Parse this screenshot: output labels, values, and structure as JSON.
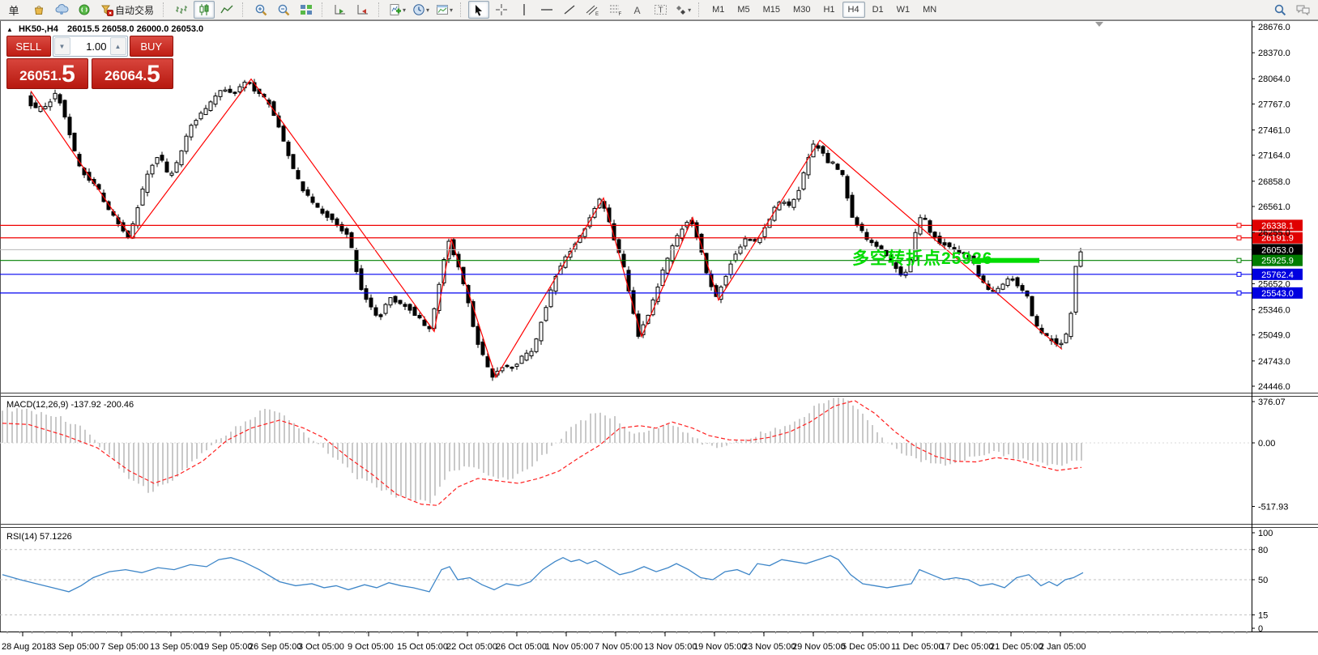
{
  "toolbar": {
    "new_order_partial": "单",
    "autotrading_label": "自动交易",
    "timeframes": [
      "M1",
      "M5",
      "M15",
      "M30",
      "H1",
      "H4",
      "D1",
      "W1",
      "MN"
    ],
    "active_timeframe": "H4"
  },
  "chart_header": {
    "collapse_arrow": "▲",
    "symbol_period": "HK50-,H4",
    "ohlc_text": "26015.5 26058.0 26000.0 26053.0"
  },
  "trade_panel": {
    "sell_label": "SELL",
    "buy_label": "BUY",
    "volume": "1.00",
    "sell_price": "26051.5",
    "buy_price": "26064.5",
    "sell_int": "26051.",
    "sell_big": "5",
    "buy_int": "26064.",
    "buy_big": "5"
  },
  "annotation": {
    "text": "多空转折点25926",
    "color": "#00dc00",
    "price": 25926
  },
  "indicators": {
    "macd_label": "MACD(12,26,9) -137.92 -200.46",
    "rsi_label": "RSI(14) 57.1226"
  },
  "chart_data": [
    {
      "type": "candlestick",
      "symbol": "HK50-",
      "timeframe": "H4",
      "last_ohlc": {
        "open": 26015.5,
        "high": 26058.0,
        "low": 26000.0,
        "close": 26053.0
      },
      "y_ticks": [
        "28676.0",
        "28370.0",
        "28064.0",
        "27767.0",
        "27461.0",
        "27164.0",
        "26858.0",
        "26561.0",
        "26255.0",
        "25652.0",
        "25346.0",
        "25049.0",
        "24743.0",
        "24446.0"
      ],
      "x_labels": [
        "28 Aug 2018",
        "3 Sep 05:00",
        "7 Sep 05:00",
        "13 Sep 05:00",
        "19 Sep 05:00",
        "26 Sep 05:00",
        "3 Oct 05:00",
        "9 Oct 05:00",
        "15 Oct 05:00",
        "22 Oct 05:00",
        "26 Oct 05:00",
        "1 Nov 05:00",
        "7 Nov 05:00",
        "13 Nov 05:00",
        "19 Nov 05:00",
        "23 Nov 05:00",
        "29 Nov 05:00",
        "5 Dec 05:00",
        "11 Dec 05:00",
        "17 Dec 05:00",
        "21 Dec 05:00",
        "2 Jan 05:00"
      ],
      "hlines": [
        {
          "label": "26338.1",
          "price": 26338.1,
          "color": "#f00000",
          "badge": "#e00000"
        },
        {
          "label": "26191.9",
          "price": 26191.9,
          "color": "#f00000",
          "badge": "#e00000"
        },
        {
          "label": "26053.0",
          "price": 26053.0,
          "color": "#b8b8b8",
          "badge": "#000000",
          "current": true
        },
        {
          "label": "25925.9",
          "price": 25925.9,
          "color": "#008000",
          "badge": "#007d00",
          "highlight": [
            1200,
            1283
          ]
        },
        {
          "label": "25762.4",
          "price": 25762.4,
          "color": "#0000f0",
          "badge": "#0000e0"
        },
        {
          "label": "25543.0",
          "price": 25543.0,
          "color": "#0000f0",
          "badge": "#0000e0"
        }
      ],
      "zigzag_color": "#ff0000",
      "zigzag": [
        [
          38,
          27920
        ],
        [
          163,
          26185
        ],
        [
          310,
          28060
        ],
        [
          536,
          25090
        ],
        [
          557,
          26180
        ],
        [
          612,
          24550
        ],
        [
          745,
          26660
        ],
        [
          792,
          25030
        ],
        [
          855,
          26430
        ],
        [
          887,
          25460
        ],
        [
          1012,
          27340
        ],
        [
          1311,
          24880
        ]
      ],
      "price_path": [
        [
          35,
          27850
        ],
        [
          48,
          27700
        ],
        [
          62,
          27760
        ],
        [
          75,
          27900
        ],
        [
          88,
          27480
        ],
        [
          100,
          27050
        ],
        [
          112,
          26900
        ],
        [
          125,
          26760
        ],
        [
          138,
          26520
        ],
        [
          152,
          26330
        ],
        [
          163,
          26185
        ],
        [
          175,
          26600
        ],
        [
          188,
          26980
        ],
        [
          200,
          27180
        ],
        [
          212,
          26900
        ],
        [
          224,
          27100
        ],
        [
          238,
          27480
        ],
        [
          252,
          27650
        ],
        [
          266,
          27800
        ],
        [
          280,
          27950
        ],
        [
          295,
          27900
        ],
        [
          310,
          28040
        ],
        [
          322,
          27880
        ],
        [
          335,
          27800
        ],
        [
          348,
          27520
        ],
        [
          362,
          27100
        ],
        [
          375,
          26800
        ],
        [
          390,
          26600
        ],
        [
          405,
          26480
        ],
        [
          420,
          26350
        ],
        [
          435,
          26200
        ],
        [
          448,
          25650
        ],
        [
          460,
          25380
        ],
        [
          472,
          25250
        ],
        [
          485,
          25500
        ],
        [
          498,
          25420
        ],
        [
          512,
          25350
        ],
        [
          525,
          25200
        ],
        [
          535,
          25100
        ],
        [
          545,
          25600
        ],
        [
          557,
          26170
        ],
        [
          568,
          25900
        ],
        [
          580,
          25500
        ],
        [
          592,
          25000
        ],
        [
          602,
          24750
        ],
        [
          612,
          24560
        ],
        [
          625,
          24700
        ],
        [
          638,
          24650
        ],
        [
          650,
          24800
        ],
        [
          662,
          24850
        ],
        [
          675,
          25300
        ],
        [
          688,
          25700
        ],
        [
          700,
          25950
        ],
        [
          712,
          26100
        ],
        [
          725,
          26300
        ],
        [
          738,
          26550
        ],
        [
          745,
          26650
        ],
        [
          755,
          26400
        ],
        [
          765,
          26100
        ],
        [
          775,
          25800
        ],
        [
          785,
          25350
        ],
        [
          792,
          25050
        ],
        [
          802,
          25250
        ],
        [
          812,
          25500
        ],
        [
          822,
          25800
        ],
        [
          835,
          26100
        ],
        [
          845,
          26300
        ],
        [
          855,
          26420
        ],
        [
          865,
          26200
        ],
        [
          875,
          25800
        ],
        [
          887,
          25470
        ],
        [
          898,
          25700
        ],
        [
          908,
          25950
        ],
        [
          918,
          26100
        ],
        [
          928,
          26200
        ],
        [
          938,
          26150
        ],
        [
          948,
          26300
        ],
        [
          958,
          26500
        ],
        [
          968,
          26650
        ],
        [
          978,
          26550
        ],
        [
          988,
          26700
        ],
        [
          998,
          27000
        ],
        [
          1008,
          27300
        ],
        [
          1015,
          27250
        ],
        [
          1025,
          27100
        ],
        [
          1035,
          27050
        ],
        [
          1045,
          26900
        ],
        [
          1055,
          26470
        ],
        [
          1065,
          26300
        ],
        [
          1075,
          26150
        ],
        [
          1085,
          26100
        ],
        [
          1095,
          26050
        ],
        [
          1105,
          25900
        ],
        [
          1115,
          25750
        ],
        [
          1125,
          25800
        ],
        [
          1135,
          26300
        ],
        [
          1143,
          26500
        ],
        [
          1152,
          26250
        ],
        [
          1162,
          26150
        ],
        [
          1172,
          26100
        ],
        [
          1182,
          26050
        ],
        [
          1192,
          26000
        ],
        [
          1202,
          25950
        ],
        [
          1212,
          25750
        ],
        [
          1222,
          25600
        ],
        [
          1232,
          25550
        ],
        [
          1242,
          25650
        ],
        [
          1252,
          25750
        ],
        [
          1262,
          25600
        ],
        [
          1272,
          25500
        ],
        [
          1282,
          25150
        ],
        [
          1292,
          25050
        ],
        [
          1302,
          24980
        ],
        [
          1312,
          24900
        ],
        [
          1320,
          25050
        ],
        [
          1327,
          25350
        ],
        [
          1334,
          26050
        ]
      ]
    },
    {
      "type": "macd-histogram",
      "params": "12,26,9",
      "macd_value": -137.92,
      "signal_value": -200.46,
      "y_ticks": [
        "376.07",
        "0.00",
        "-517.93"
      ],
      "histogram_color": "#c9c9c9",
      "signal_color": "#ff2020",
      "histogram_path": [
        [
          3,
          280
        ],
        [
          35,
          260
        ],
        [
          70,
          220
        ],
        [
          100,
          120
        ],
        [
          130,
          -60
        ],
        [
          160,
          -300
        ],
        [
          185,
          -400
        ],
        [
          215,
          -290
        ],
        [
          245,
          -120
        ],
        [
          275,
          60
        ],
        [
          305,
          180
        ],
        [
          330,
          290
        ],
        [
          355,
          200
        ],
        [
          380,
          60
        ],
        [
          410,
          -100
        ],
        [
          440,
          -280
        ],
        [
          470,
          -380
        ],
        [
          500,
          -460
        ],
        [
          530,
          -490
        ],
        [
          555,
          -240
        ],
        [
          580,
          -180
        ],
        [
          605,
          -280
        ],
        [
          630,
          -300
        ],
        [
          655,
          -200
        ],
        [
          680,
          -40
        ],
        [
          705,
          120
        ],
        [
          735,
          250
        ],
        [
          760,
          200
        ],
        [
          785,
          60
        ],
        [
          805,
          100
        ],
        [
          830,
          160
        ],
        [
          855,
          40
        ],
        [
          880,
          -40
        ],
        [
          905,
          0
        ],
        [
          930,
          60
        ],
        [
          955,
          110
        ],
        [
          980,
          160
        ],
        [
          1005,
          290
        ],
        [
          1030,
          385
        ],
        [
          1050,
          330
        ],
        [
          1075,
          160
        ],
        [
          1100,
          -20
        ],
        [
          1125,
          -120
        ],
        [
          1150,
          -160
        ],
        [
          1175,
          -180
        ],
        [
          1200,
          -120
        ],
        [
          1225,
          -60
        ],
        [
          1250,
          -120
        ],
        [
          1275,
          -160
        ],
        [
          1300,
          -180
        ],
        [
          1320,
          -160
        ],
        [
          1335,
          -138
        ]
      ],
      "signal_path": [
        [
          3,
          160
        ],
        [
          35,
          150
        ],
        [
          80,
          60
        ],
        [
          120,
          -40
        ],
        [
          160,
          -230
        ],
        [
          190,
          -330
        ],
        [
          220,
          -260
        ],
        [
          250,
          -150
        ],
        [
          280,
          20
        ],
        [
          310,
          120
        ],
        [
          345,
          185
        ],
        [
          375,
          120
        ],
        [
          400,
          40
        ],
        [
          430,
          -120
        ],
        [
          460,
          -260
        ],
        [
          490,
          -420
        ],
        [
          520,
          -500
        ],
        [
          540,
          -510
        ],
        [
          565,
          -360
        ],
        [
          590,
          -290
        ],
        [
          615,
          -310
        ],
        [
          640,
          -330
        ],
        [
          665,
          -290
        ],
        [
          690,
          -230
        ],
        [
          715,
          -120
        ],
        [
          740,
          -20
        ],
        [
          765,
          120
        ],
        [
          790,
          140
        ],
        [
          810,
          120
        ],
        [
          830,
          170
        ],
        [
          855,
          120
        ],
        [
          875,
          60
        ],
        [
          900,
          25
        ],
        [
          925,
          20
        ],
        [
          950,
          45
        ],
        [
          975,
          90
        ],
        [
          1000,
          170
        ],
        [
          1030,
          300
        ],
        [
          1055,
          345
        ],
        [
          1080,
          240
        ],
        [
          1105,
          90
        ],
        [
          1130,
          -30
        ],
        [
          1155,
          -110
        ],
        [
          1180,
          -150
        ],
        [
          1205,
          -155
        ],
        [
          1230,
          -120
        ],
        [
          1255,
          -140
        ],
        [
          1280,
          -185
        ],
        [
          1305,
          -225
        ],
        [
          1335,
          -200
        ]
      ]
    },
    {
      "type": "line",
      "name": "RSI",
      "period": 14,
      "value": 57.1226,
      "y_ticks": [
        "100",
        "80",
        "50",
        "15",
        "0"
      ],
      "levels": [
        80,
        50,
        15
      ],
      "line_color": "#3e86c8",
      "points": [
        [
          3,
          55
        ],
        [
          25,
          50
        ],
        [
          45,
          46
        ],
        [
          65,
          42
        ],
        [
          85,
          38
        ],
        [
          100,
          44
        ],
        [
          115,
          52
        ],
        [
          135,
          58
        ],
        [
          155,
          60
        ],
        [
          175,
          57
        ],
        [
          195,
          62
        ],
        [
          215,
          60
        ],
        [
          235,
          65
        ],
        [
          255,
          63
        ],
        [
          270,
          70
        ],
        [
          285,
          72
        ],
        [
          300,
          68
        ],
        [
          320,
          60
        ],
        [
          345,
          48
        ],
        [
          365,
          44
        ],
        [
          385,
          46
        ],
        [
          400,
          42
        ],
        [
          415,
          44
        ],
        [
          430,
          40
        ],
        [
          450,
          45
        ],
        [
          465,
          42
        ],
        [
          480,
          47
        ],
        [
          495,
          44
        ],
        [
          510,
          42
        ],
        [
          530,
          38
        ],
        [
          545,
          60
        ],
        [
          555,
          63
        ],
        [
          565,
          50
        ],
        [
          580,
          52
        ],
        [
          595,
          45
        ],
        [
          610,
          40
        ],
        [
          625,
          46
        ],
        [
          640,
          44
        ],
        [
          655,
          48
        ],
        [
          670,
          60
        ],
        [
          685,
          68
        ],
        [
          695,
          72
        ],
        [
          705,
          68
        ],
        [
          715,
          70
        ],
        [
          725,
          66
        ],
        [
          735,
          69
        ],
        [
          750,
          62
        ],
        [
          765,
          55
        ],
        [
          780,
          58
        ],
        [
          795,
          63
        ],
        [
          810,
          58
        ],
        [
          825,
          62
        ],
        [
          835,
          66
        ],
        [
          850,
          60
        ],
        [
          865,
          52
        ],
        [
          880,
          50
        ],
        [
          895,
          58
        ],
        [
          910,
          60
        ],
        [
          925,
          55
        ],
        [
          935,
          66
        ],
        [
          950,
          64
        ],
        [
          965,
          70
        ],
        [
          980,
          68
        ],
        [
          995,
          66
        ],
        [
          1010,
          70
        ],
        [
          1025,
          74
        ],
        [
          1035,
          70
        ],
        [
          1050,
          55
        ],
        [
          1065,
          46
        ],
        [
          1080,
          44
        ],
        [
          1095,
          42
        ],
        [
          1110,
          44
        ],
        [
          1125,
          46
        ],
        [
          1135,
          60
        ],
        [
          1150,
          55
        ],
        [
          1165,
          50
        ],
        [
          1180,
          52
        ],
        [
          1195,
          50
        ],
        [
          1210,
          44
        ],
        [
          1225,
          46
        ],
        [
          1240,
          42
        ],
        [
          1255,
          52
        ],
        [
          1270,
          55
        ],
        [
          1285,
          44
        ],
        [
          1295,
          48
        ],
        [
          1305,
          44
        ],
        [
          1315,
          50
        ],
        [
          1325,
          52
        ],
        [
          1337,
          57
        ]
      ]
    }
  ]
}
